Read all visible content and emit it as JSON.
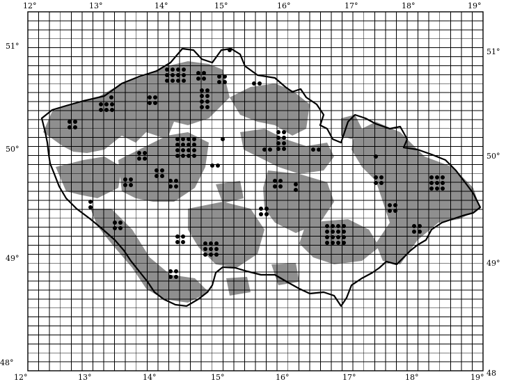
{
  "map": {
    "top_labels": [
      "12°",
      "13°",
      "14°",
      "15°",
      "16°",
      "17°",
      "18°",
      "19°"
    ],
    "bottom_labels": [
      "12°",
      "13°",
      "14°",
      "15°",
      "16°",
      "17°",
      "18°",
      "19°"
    ],
    "left_labels": [
      "51°",
      "50°",
      "49°",
      "48°"
    ],
    "right_labels": [
      "51°",
      "50°",
      "49°",
      "48"
    ],
    "colors": {
      "grid": "#000000",
      "border": "#000000",
      "range": "#8f8f8f",
      "record": "#000000",
      "background": "#ffffff"
    }
  }
}
